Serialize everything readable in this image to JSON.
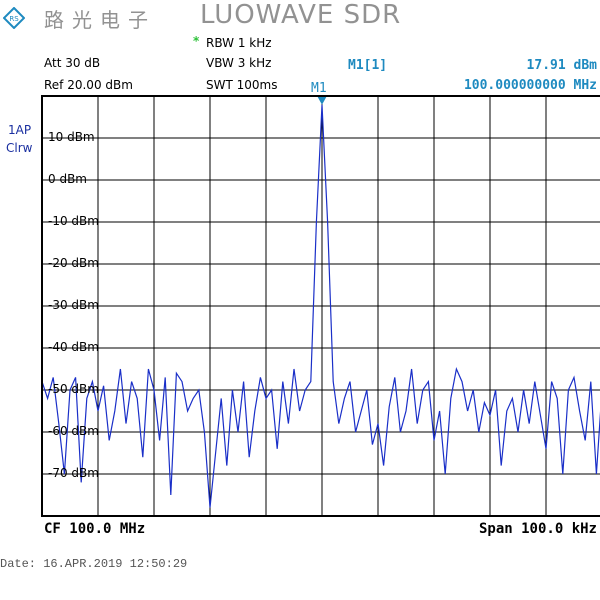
{
  "header": {
    "logo": "R&S",
    "rbw_mark": "*",
    "rbw": "RBW 1 kHz",
    "vbw": "VBW 3 kHz",
    "swt": "SWT 100ms",
    "att": "Att  30 dB",
    "ref": "Ref  20.00 dBm",
    "marker_label": "M1[1]",
    "marker_level": "17.91 dBm",
    "marker_freq": "100.000000000 MHz"
  },
  "trace_info": {
    "line1": "1AP",
    "line2": "Clrw"
  },
  "footer": {
    "cf": "CF 100.0 MHz",
    "span": "Span 100.0 kHz",
    "date": "Date: 16.APR.2019   12:50:29"
  },
  "watermark": {
    "cn": "路光电子",
    "en": "LUOWAVE SDR"
  },
  "colors": {
    "trace": "#1a2fc8",
    "marker": "#1e8ac0",
    "grid": "#000000",
    "accent": "#1e8ac0"
  },
  "chart_data": {
    "type": "line",
    "xlabel": "",
    "ylabel": "",
    "x_unit": "kHz offset from CF",
    "xlim": [
      -50,
      50
    ],
    "ylim": [
      -80,
      20
    ],
    "grid": true,
    "y_ticks": [
      {
        "value": 10,
        "label": "10 dBm"
      },
      {
        "value": 0,
        "label": "0 dBm"
      },
      {
        "value": -10,
        "label": "-10 dBm"
      },
      {
        "value": -20,
        "label": "-20 dBm"
      },
      {
        "value": -30,
        "label": "-30 dBm"
      },
      {
        "value": -40,
        "label": "-40 dBm"
      },
      {
        "value": -50,
        "label": "-50 dBm"
      },
      {
        "value": -60,
        "label": "-60 dBm"
      },
      {
        "value": -70,
        "label": "-70 dBm"
      }
    ],
    "marker": {
      "name": "M1",
      "x": 0,
      "y": 17.91
    },
    "x": [
      -50,
      -49,
      -48,
      -47,
      -46,
      -45,
      -44,
      -43,
      -42,
      -41,
      -40,
      -39,
      -38,
      -37,
      -36,
      -35,
      -34,
      -33,
      -32,
      -31,
      -30,
      -29,
      -28,
      -27,
      -26,
      -25,
      -24,
      -23,
      -22,
      -21,
      -20,
      -19,
      -18,
      -17,
      -16,
      -15,
      -14,
      -13,
      -12,
      -11,
      -10,
      -9,
      -8,
      -7,
      -6,
      -5,
      -4,
      -3,
      -2,
      -1,
      0,
      1,
      2,
      3,
      4,
      5,
      6,
      7,
      8,
      9,
      10,
      11,
      12,
      13,
      14,
      15,
      16,
      17,
      18,
      19,
      20,
      21,
      22,
      23,
      24,
      25,
      26,
      27,
      28,
      29,
      30,
      31,
      32,
      33,
      34,
      35,
      36,
      37,
      38,
      39,
      40,
      41,
      42,
      43,
      44,
      45,
      46,
      47,
      48,
      49,
      50
    ],
    "y": [
      -48,
      -52,
      -47,
      -58,
      -70,
      -50,
      -47,
      -72,
      -52,
      -48,
      -55,
      -49,
      -62,
      -55,
      -45,
      -58,
      -48,
      -52,
      -66,
      -45,
      -50,
      -62,
      -47,
      -75,
      -46,
      -48,
      -55,
      -52,
      -50,
      -60,
      -78,
      -65,
      -52,
      -68,
      -50,
      -60,
      -48,
      -66,
      -55,
      -47,
      -52,
      -50,
      -64,
      -48,
      -58,
      -45,
      -55,
      -50,
      -48,
      -10,
      17.91,
      -10,
      -48,
      -58,
      -52,
      -48,
      -60,
      -55,
      -50,
      -63,
      -58,
      -68,
      -54,
      -47,
      -60,
      -55,
      -45,
      -58,
      -50,
      -48,
      -62,
      -55,
      -70,
      -52,
      -45,
      -48,
      -55,
      -50,
      -60,
      -53,
      -56,
      -50,
      -68,
      -55,
      -52,
      -60,
      -50,
      -58,
      -48,
      -56,
      -64,
      -48,
      -52,
      -70,
      -50,
      -47,
      -55,
      -62,
      -48,
      -70,
      -50
    ]
  }
}
